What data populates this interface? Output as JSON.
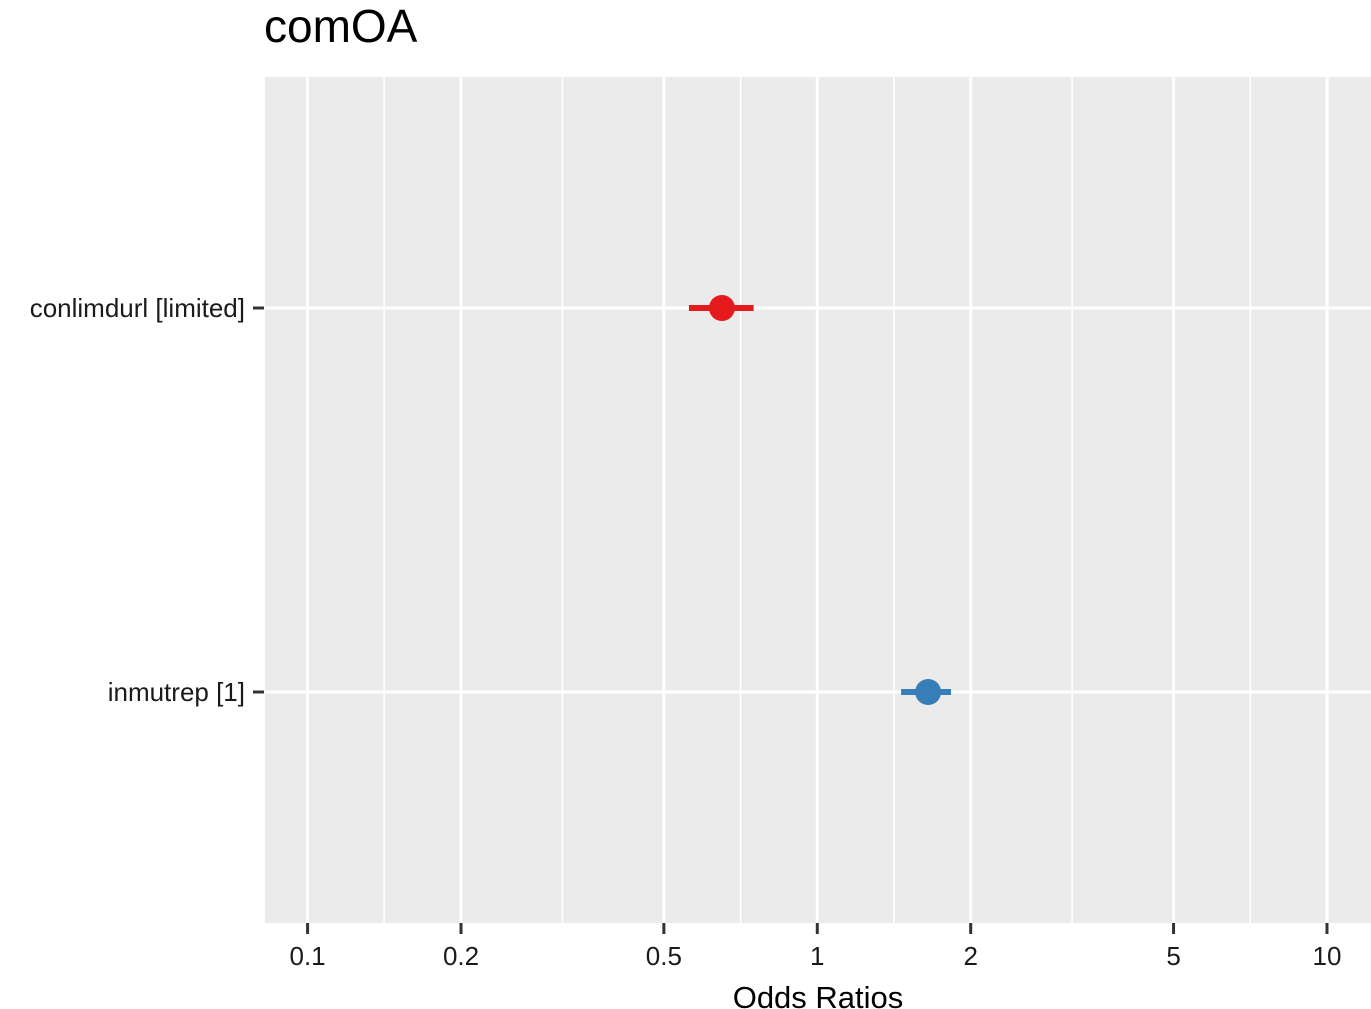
{
  "chart_data": {
    "type": "forest",
    "title": "comOA",
    "xlabel": "Odds Ratios",
    "ylabel": "",
    "x_scale": "log10",
    "xlim": [
      0.0825,
      12.2
    ],
    "x_major_ticks": [
      0.1,
      0.2,
      0.5,
      1,
      2,
      5,
      10
    ],
    "x_tick_labels": [
      "0.1",
      "0.2",
      "0.5",
      "1",
      "2",
      "5",
      "10"
    ],
    "x_minor_gridlines": [
      0.1414,
      0.3162,
      0.7071,
      1.4142,
      3.1623,
      7.0711
    ],
    "grid": true,
    "panel_background": "#EBEBEB",
    "terms": [
      {
        "label": "conlimdurl [limited]",
        "estimate": 0.65,
        "ci_low": 0.56,
        "ci_high": 0.75,
        "color": "#E41A1C"
      },
      {
        "label": "inmutrep [1]",
        "estimate": 1.65,
        "ci_low": 1.46,
        "ci_high": 1.83,
        "color": "#377EB8"
      }
    ]
  }
}
